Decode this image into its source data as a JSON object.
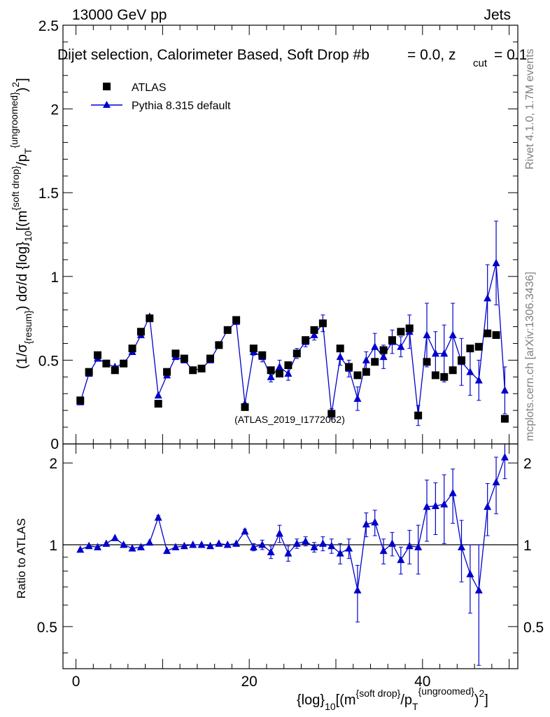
{
  "header": {
    "left": "13000 GeV pp",
    "right": "Jets"
  },
  "side": {
    "rivet": "Rivet 4.1.0,  1.7M events",
    "mcplots": "mcplots.cern.ch [arXiv:1306.3436]"
  },
  "colors": {
    "data": "#000000",
    "mc": "#0000cc",
    "frame": "#000000",
    "watermark": "#a0a0a0"
  },
  "chart_data": [
    {
      "type": "scatter",
      "title": "Dijet selection, Calorimeter Based, Soft Drop #b = 0.0, z_cut = 0.1",
      "title_parts": {
        "main": "Dijet selection, Calorimeter Based, Soft Drop #b",
        "eq1": "= 0.0, z",
        "sub": "cut",
        "eq2": "= 0.1"
      },
      "ylabel": "(1/σ_{resum}) dσ/d {log}_10[(m^{soft drop}/p_T^{ungroomed})^2]",
      "ylabel_parts": {
        "a": "(1/σ",
        "a_sub": "{resum}",
        "b": ") dσ/d {log}",
        "b_sub": "10",
        "c": "[(m",
        "c_sup": "{soft drop}",
        "d": "/p",
        "d_sub": "T",
        "d_sup": "{ungroomed}",
        "e": ")",
        "e_sup": "2",
        "f": "]"
      },
      "ylim": [
        0,
        2.5
      ],
      "yticks": [
        0.5,
        1,
        1.5,
        2,
        2.5
      ],
      "ytick_labels": [
        "0.5",
        "1",
        "1.5",
        "2",
        "2.5"
      ],
      "y_zero_label": "0",
      "watermark": "(ATLAS_2019_I1772062)",
      "legend": [
        "ATLAS",
        "Pythia 8.315 default"
      ],
      "legend_position": "top-left",
      "series": [
        {
          "name": "ATLAS",
          "marker": "square",
          "x": [
            0.5,
            1.5,
            2.5,
            3.5,
            4.5,
            5.5,
            6.5,
            7.5,
            8.5,
            9.5,
            10.5,
            11.5,
            12.5,
            13.5,
            14.5,
            15.5,
            16.5,
            17.5,
            18.5,
            19.5,
            20.5,
            21.5,
            22.5,
            23.5,
            24.5,
            25.5,
            26.5,
            27.5,
            28.5,
            29.5,
            30.5,
            31.5,
            32.5,
            33.5,
            34.5,
            35.5,
            36.5,
            37.5,
            38.5,
            39.5,
            40.5,
            41.5,
            42.5,
            43.5,
            44.5,
            45.5,
            46.5,
            47.5,
            48.5,
            49.5
          ],
          "values": [
            0.26,
            0.43,
            0.53,
            0.48,
            0.44,
            0.48,
            0.57,
            0.67,
            0.75,
            0.24,
            0.43,
            0.54,
            0.51,
            0.44,
            0.45,
            0.51,
            0.59,
            0.68,
            0.74,
            0.22,
            0.57,
            0.53,
            0.44,
            0.42,
            0.47,
            0.54,
            0.62,
            0.68,
            0.72,
            0.18,
            0.57,
            0.46,
            0.41,
            0.43,
            0.49,
            0.56,
            0.62,
            0.67,
            0.69,
            0.17,
            0.49,
            0.41,
            0.4,
            0.44,
            0.5,
            0.57,
            0.58,
            0.66,
            0.65,
            0.15
          ]
        },
        {
          "name": "Pythia 8.315 default",
          "marker": "triangle",
          "x": [
            0.5,
            1.5,
            2.5,
            3.5,
            4.5,
            5.5,
            6.5,
            7.5,
            8.5,
            9.5,
            10.5,
            11.5,
            12.5,
            13.5,
            14.5,
            15.5,
            16.5,
            17.5,
            18.5,
            19.5,
            20.5,
            21.5,
            22.5,
            23.5,
            24.5,
            25.5,
            26.5,
            27.5,
            28.5,
            29.5,
            30.5,
            31.5,
            32.5,
            33.5,
            34.5,
            35.5,
            36.5,
            37.5,
            38.5,
            39.5,
            40.5,
            41.5,
            42.5,
            43.5,
            44.5,
            45.5,
            46.5,
            47.5,
            48.5,
            49.5
          ],
          "values": [
            0.25,
            0.42,
            0.51,
            0.48,
            0.46,
            0.48,
            0.55,
            0.65,
            0.76,
            0.29,
            0.41,
            0.52,
            0.5,
            0.44,
            0.45,
            0.5,
            0.59,
            0.68,
            0.73,
            0.24,
            0.55,
            0.52,
            0.4,
            0.46,
            0.42,
            0.54,
            0.61,
            0.65,
            0.72,
            0.18,
            0.52,
            0.45,
            0.27,
            0.5,
            0.58,
            0.52,
            0.61,
            0.58,
            0.67,
            0.17,
            0.65,
            0.54,
            0.54,
            0.65,
            0.49,
            0.43,
            0.38,
            0.87,
            1.08,
            0.32
          ],
          "errors": [
            0.01,
            0.01,
            0.01,
            0.01,
            0.01,
            0.01,
            0.01,
            0.01,
            0.01,
            0.01,
            0.01,
            0.01,
            0.01,
            0.01,
            0.01,
            0.01,
            0.01,
            0.01,
            0.01,
            0.01,
            0.02,
            0.03,
            0.03,
            0.04,
            0.04,
            0.03,
            0.03,
            0.03,
            0.05,
            0.03,
            0.05,
            0.05,
            0.07,
            0.05,
            0.08,
            0.07,
            0.07,
            0.06,
            0.1,
            0.06,
            0.19,
            0.13,
            0.17,
            0.19,
            0.14,
            0.14,
            0.12,
            0.2,
            0.25,
            0.14
          ]
        }
      ]
    },
    {
      "type": "scatter",
      "ylabel": "Ratio to ATLAS",
      "xlabel": "{log}_10[(m^{soft drop}/p_T^{ungroomed})^2]",
      "xlabel_parts": {
        "a": "{log}",
        "a_sub": "10",
        "b": "[(m",
        "b_sup": "{soft drop}",
        "c": "/p",
        "c_sub": "T",
        "c_sup": "{ungroomed}",
        "d": ")",
        "d_sup": "2",
        "e": "]"
      },
      "xlim": [
        -1.5,
        51
      ],
      "ylim": [
        0.35,
        2.35
      ],
      "xticks": [
        0,
        20,
        40
      ],
      "xtick_labels": [
        "0",
        "20",
        "40"
      ],
      "yticks": [
        0.5,
        1,
        2
      ],
      "ytick_labels": [
        "0.5",
        "1",
        "2"
      ],
      "reference_line": 1,
      "series": [
        {
          "name": "Pythia 8.315 default / ATLAS",
          "marker": "triangle",
          "x": [
            0.5,
            1.5,
            2.5,
            3.5,
            4.5,
            5.5,
            6.5,
            7.5,
            8.5,
            9.5,
            10.5,
            11.5,
            12.5,
            13.5,
            14.5,
            15.5,
            16.5,
            17.5,
            18.5,
            19.5,
            20.5,
            21.5,
            22.5,
            23.5,
            24.5,
            25.5,
            26.5,
            27.5,
            28.5,
            29.5,
            30.5,
            31.5,
            32.5,
            33.5,
            34.5,
            35.5,
            36.5,
            37.5,
            38.5,
            39.5,
            40.5,
            41.5,
            42.5,
            43.5,
            44.5,
            45.5,
            46.5,
            47.5,
            48.5,
            49.5
          ],
          "values": [
            0.96,
            0.99,
            0.98,
            1.01,
            1.06,
            1.0,
            0.97,
            0.98,
            1.02,
            1.26,
            0.95,
            0.98,
            0.99,
            1.0,
            1.0,
            0.99,
            1.01,
            1.0,
            1.01,
            1.12,
            0.98,
            1.0,
            0.94,
            1.1,
            0.93,
            1.01,
            1.03,
            0.98,
            1.01,
            0.99,
            0.93,
            0.97,
            0.68,
            1.19,
            1.21,
            0.95,
            1.01,
            0.88,
            0.99,
            0.98,
            1.38,
            1.39,
            1.41,
            1.55,
            0.98,
            0.78,
            0.68,
            1.38,
            1.7,
            2.1
          ],
          "errors": [
            0.01,
            0.01,
            0.01,
            0.01,
            0.01,
            0.01,
            0.01,
            0.01,
            0.01,
            0.02,
            0.01,
            0.01,
            0.01,
            0.01,
            0.01,
            0.01,
            0.01,
            0.01,
            0.01,
            0.02,
            0.03,
            0.04,
            0.05,
            0.08,
            0.06,
            0.04,
            0.04,
            0.04,
            0.06,
            0.06,
            0.08,
            0.08,
            0.16,
            0.12,
            0.13,
            0.1,
            0.1,
            0.1,
            0.14,
            0.2,
            0.35,
            0.3,
            0.4,
            0.35,
            0.25,
            0.22,
            0.32,
            0.3,
            0.4,
            0.35
          ]
        }
      ]
    }
  ]
}
